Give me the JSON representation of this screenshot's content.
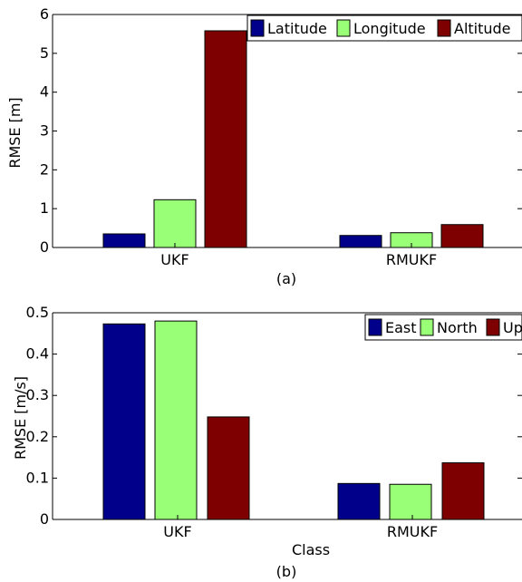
{
  "chart_data": [
    {
      "type": "bar",
      "categories": [
        "UKF",
        "RMUKF"
      ],
      "series": [
        {
          "name": "Latitude",
          "color": "#00008b",
          "values": [
            0.35,
            0.31
          ]
        },
        {
          "name": "Longitude",
          "color": "#99ff77",
          "values": [
            1.23,
            0.38
          ]
        },
        {
          "name": "Altitude",
          "color": "#7f0000",
          "values": [
            5.58,
            0.59
          ]
        }
      ],
      "ylabel": "RMSE [m]",
      "xlabel": "",
      "ylim": [
        0,
        6
      ],
      "yticks": [
        "0",
        "1",
        "2",
        "3",
        "4",
        "5",
        "6"
      ],
      "grid": false,
      "legend_placement": "top-right",
      "caption": "(a)"
    },
    {
      "type": "bar",
      "categories": [
        "UKF",
        "RMUKF"
      ],
      "series": [
        {
          "name": "East",
          "color": "#00008b",
          "values": [
            0.473,
            0.087
          ]
        },
        {
          "name": "North",
          "color": "#99ff77",
          "values": [
            0.48,
            0.085
          ]
        },
        {
          "name": "Up",
          "color": "#7f0000",
          "values": [
            0.248,
            0.137
          ]
        }
      ],
      "ylabel": "RMSE [m/s]",
      "xlabel": "Class",
      "ylim": [
        0,
        0.5
      ],
      "yticks": [
        "0",
        "0.1",
        "0.2",
        "0.3",
        "0.4",
        "0.5"
      ],
      "grid": false,
      "legend_placement": "top-right",
      "caption": "(b)"
    }
  ]
}
